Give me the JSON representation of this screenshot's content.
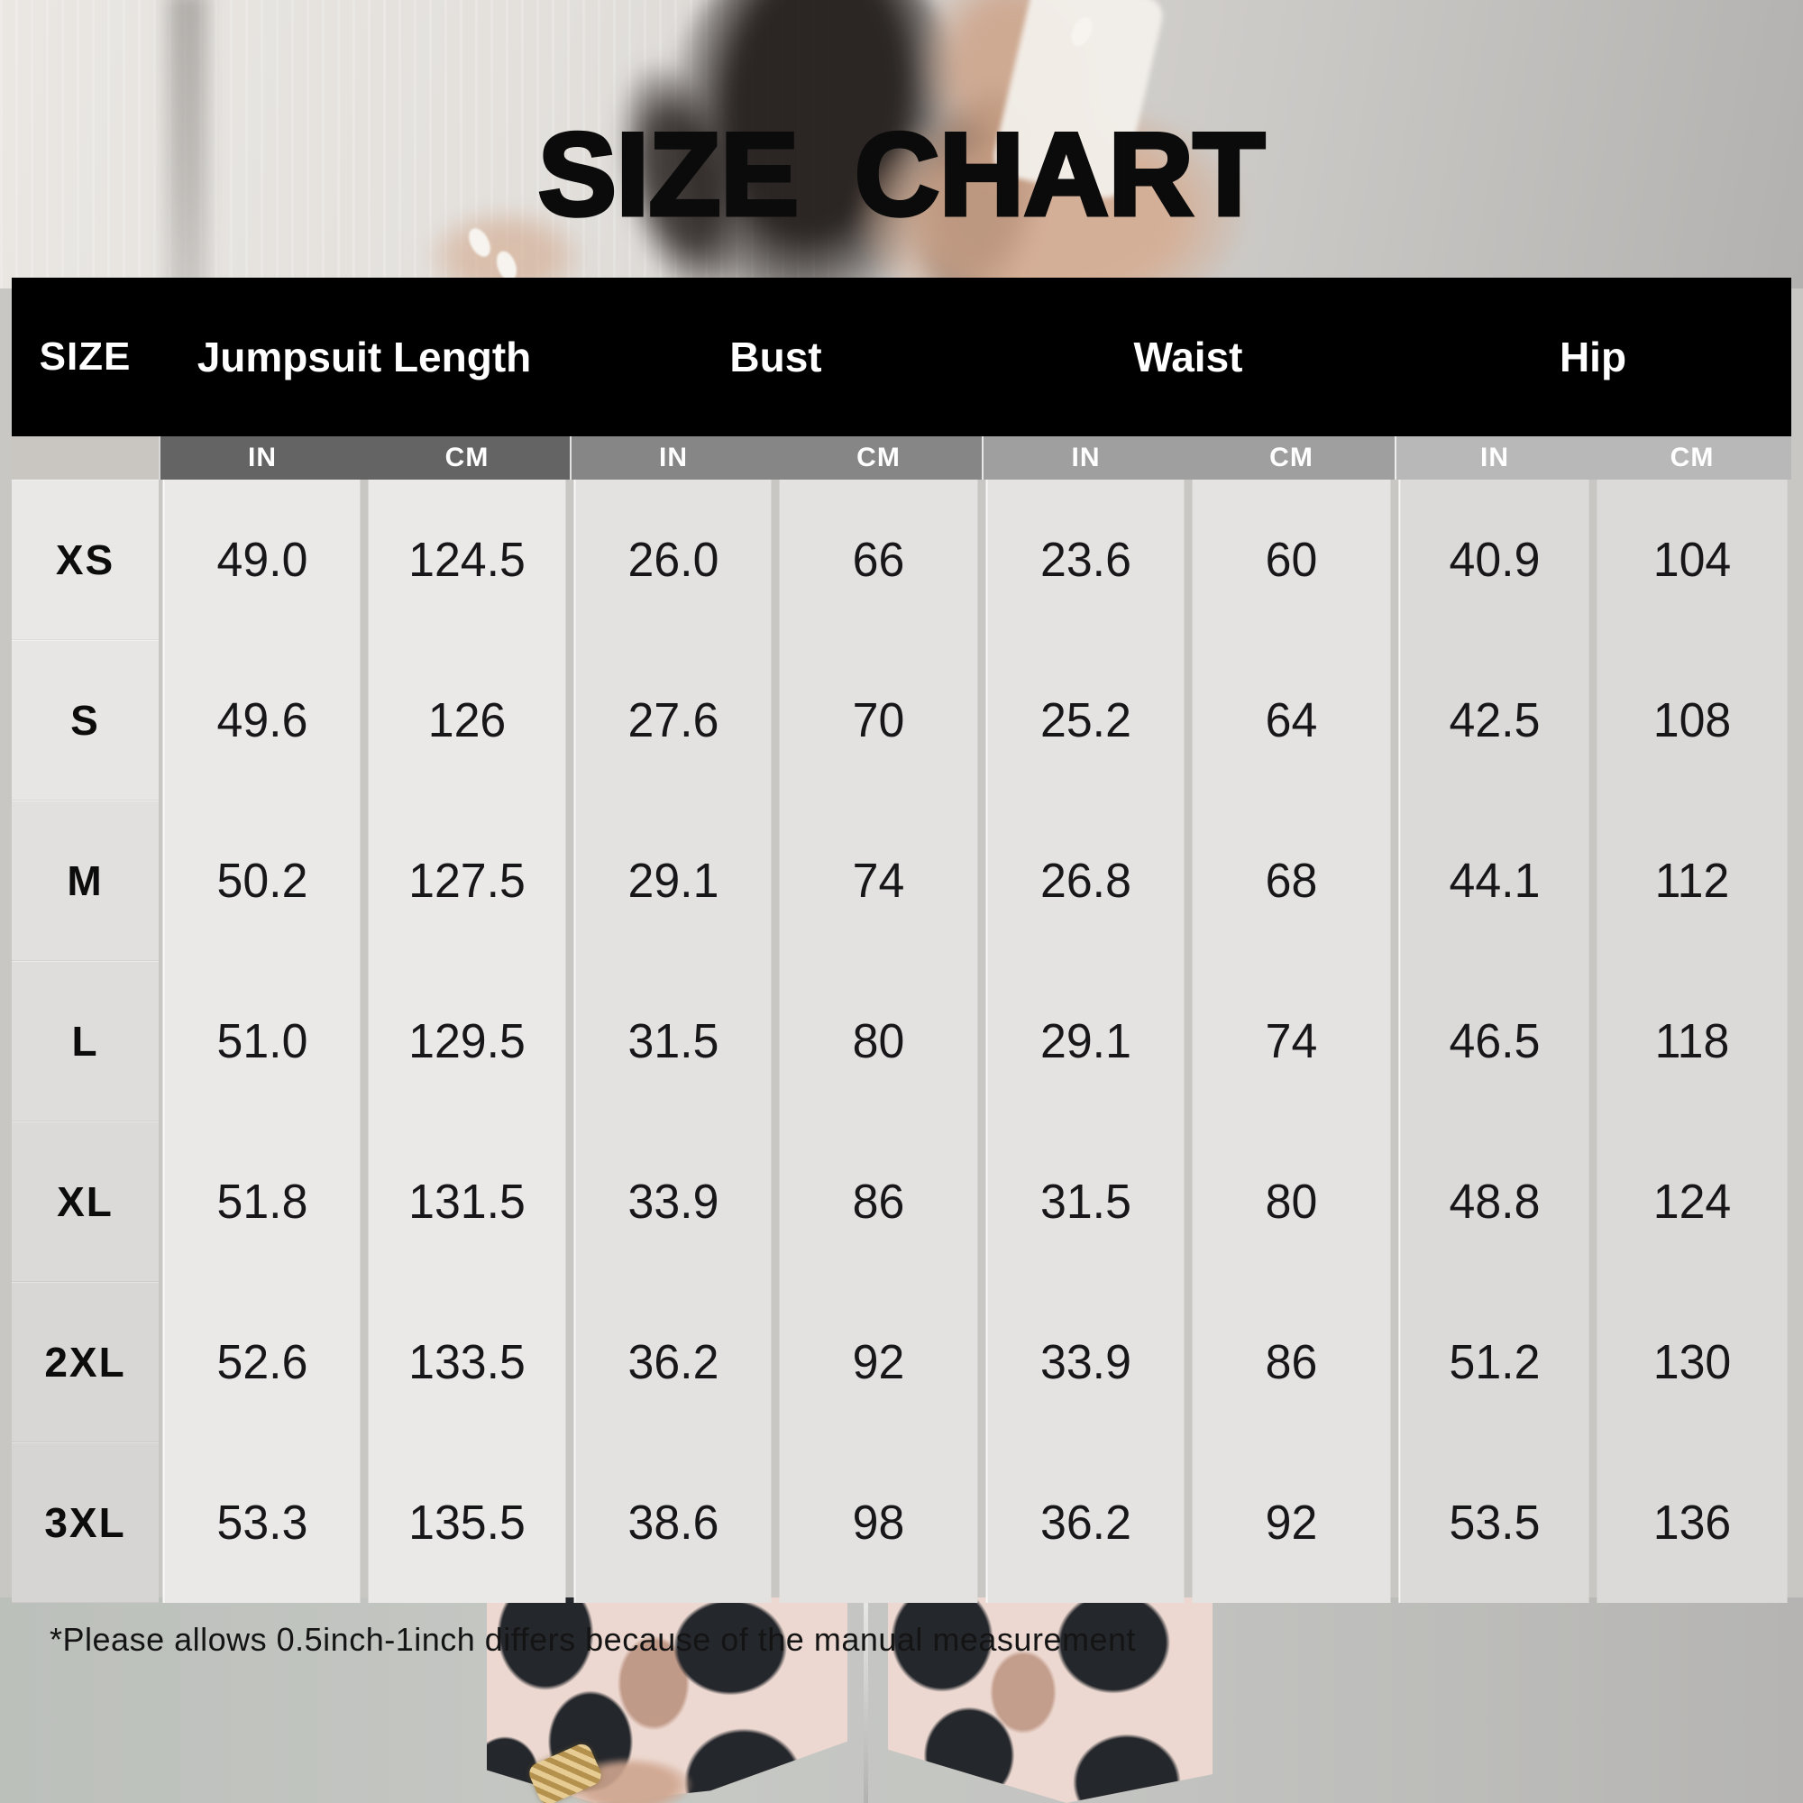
{
  "title": "SIZE CHART",
  "table": {
    "size_header": "SIZE",
    "columns": [
      {
        "label": "Jumpsuit Length"
      },
      {
        "label": "Bust"
      },
      {
        "label": "Waist"
      },
      {
        "label": "Hip"
      }
    ],
    "units": {
      "in": "IN",
      "cm": "CM"
    },
    "rows": [
      {
        "size": "XS",
        "values": [
          "49.0",
          "124.5",
          "26.0",
          "66",
          "23.6",
          "60",
          "40.9",
          "104"
        ]
      },
      {
        "size": "S",
        "values": [
          "49.6",
          "126",
          "27.6",
          "70",
          "25.2",
          "64",
          "42.5",
          "108"
        ]
      },
      {
        "size": "M",
        "values": [
          "50.2",
          "127.5",
          "29.1",
          "74",
          "26.8",
          "68",
          "44.1",
          "112"
        ]
      },
      {
        "size": "L",
        "values": [
          "51.0",
          "129.5",
          "31.5",
          "80",
          "29.1",
          "74",
          "46.5",
          "118"
        ]
      },
      {
        "size": "XL",
        "values": [
          "51.8",
          "131.5",
          "33.9",
          "86",
          "31.5",
          "80",
          "48.8",
          "124"
        ]
      },
      {
        "size": "2XL",
        "values": [
          "52.6",
          "133.5",
          "36.2",
          "92",
          "33.9",
          "86",
          "51.2",
          "130"
        ]
      },
      {
        "size": "3XL",
        "values": [
          "53.3",
          "135.5",
          "38.6",
          "98",
          "36.2",
          "92",
          "53.5",
          "136"
        ]
      }
    ]
  },
  "footnote": "*Please allows 0.5inch-1inch differs because of the manual measurement",
  "colors": {
    "header_bg": "#000000",
    "header_text": "#ffffff",
    "unit_strip_jumpsuit": "#646464",
    "unit_strip_bust": "#868686",
    "unit_strip_waist": "#9f9f9f",
    "unit_strip_hip": "#b8b8b8",
    "body_light": "#ebe9e8",
    "body_dark": "#dcdad8",
    "leopard_pink": "#ecd8d0",
    "leopard_spot": "#24272c",
    "gold_accent": "#c9a763"
  }
}
